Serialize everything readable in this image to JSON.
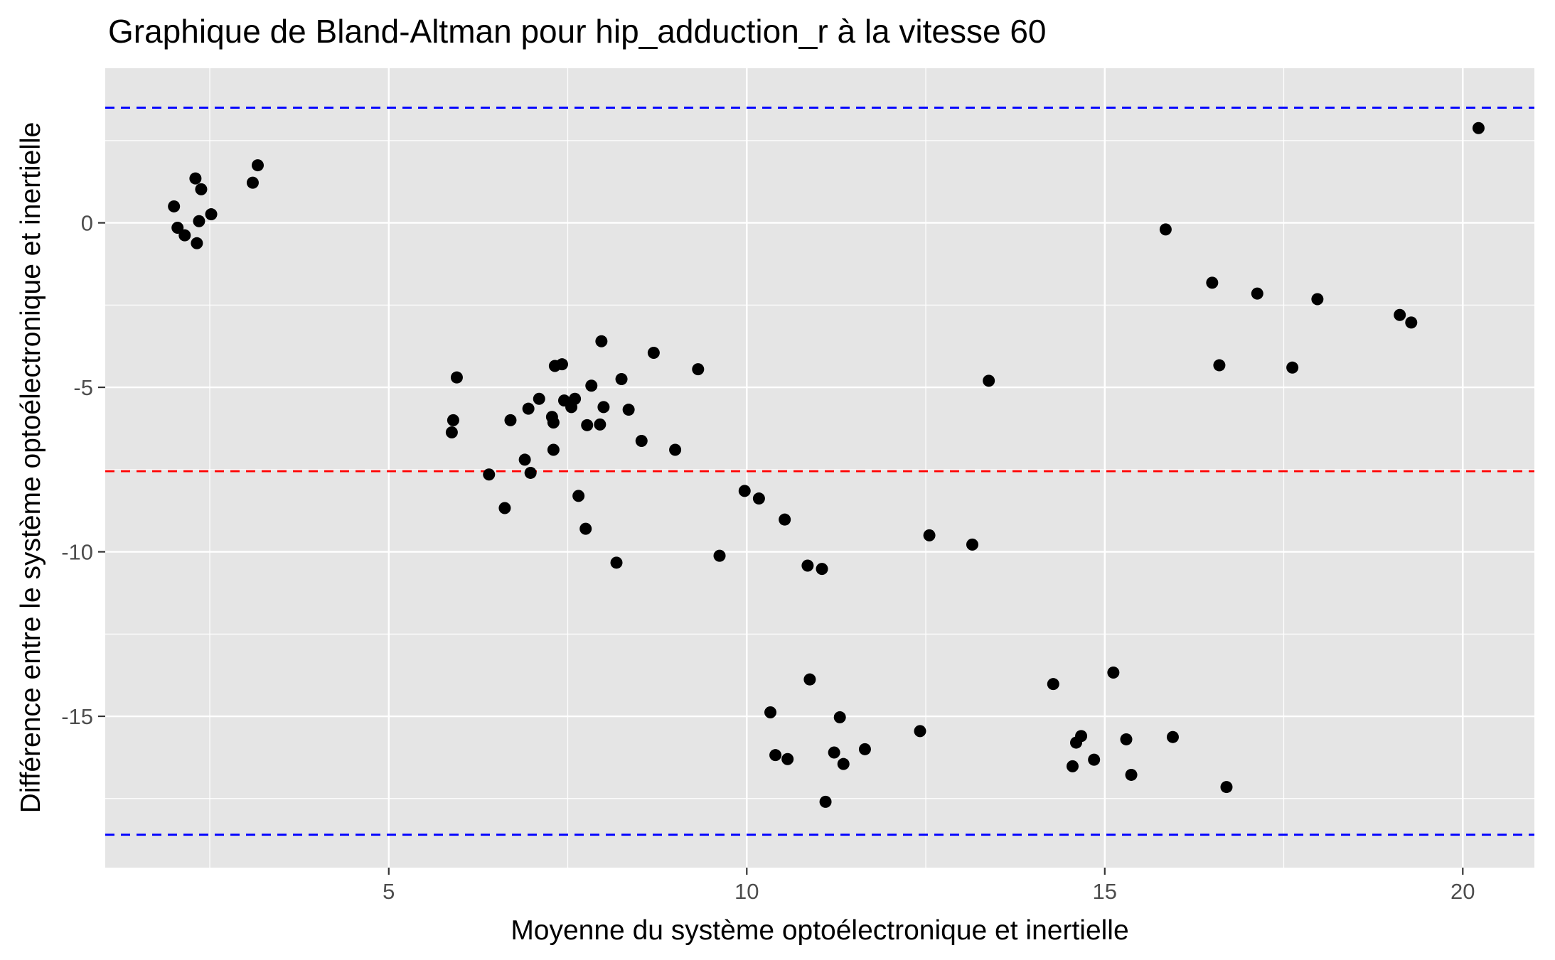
{
  "chart_data": {
    "type": "scatter",
    "title": "Graphique de Bland-Altman pour hip_adduction_r à la vitesse 60",
    "xlabel": "Moyenne du système optoélectronique et inertielle",
    "ylabel": "Différence entre le système optoélectronique et inertielle",
    "xlim": [
      1.04,
      21.0
    ],
    "ylim": [
      -19.6,
      4.7
    ],
    "x_ticks": [
      5,
      10,
      15,
      20
    ],
    "x_tick_labels": [
      "5",
      "10",
      "15",
      "20"
    ],
    "y_ticks": [
      0,
      -5,
      -10,
      -15
    ],
    "y_tick_labels": [
      "0",
      "-5",
      "-10",
      "-15"
    ],
    "grid": true,
    "legend": "none",
    "colors": {
      "panel": "#E5E5E5",
      "grid": "#FFFFFF",
      "points": "#000000",
      "mean_line": "#FF0000",
      "limit_lines": "#0000FF"
    },
    "reference_lines": [
      {
        "type": "mean_difference",
        "y": -7.55,
        "color": "#FF0000",
        "style": "dashed"
      },
      {
        "type": "upper_limit",
        "y": 3.5,
        "color": "#0000FF",
        "style": "dashed"
      },
      {
        "type": "lower_limit",
        "y": -18.6,
        "color": "#0000FF",
        "style": "dashed"
      }
    ],
    "points": [
      {
        "x": 2.0,
        "y": 0.5
      },
      {
        "x": 2.05,
        "y": -0.15
      },
      {
        "x": 2.15,
        "y": -0.38
      },
      {
        "x": 2.3,
        "y": 1.35
      },
      {
        "x": 2.32,
        "y": -0.62
      },
      {
        "x": 2.35,
        "y": 0.05
      },
      {
        "x": 2.38,
        "y": 1.02
      },
      {
        "x": 2.52,
        "y": 0.26
      },
      {
        "x": 3.1,
        "y": 1.22
      },
      {
        "x": 3.17,
        "y": 1.75
      },
      {
        "x": 5.88,
        "y": -6.37
      },
      {
        "x": 5.9,
        "y": -6.0
      },
      {
        "x": 5.95,
        "y": -4.7
      },
      {
        "x": 6.4,
        "y": -7.65
      },
      {
        "x": 6.62,
        "y": -8.67
      },
      {
        "x": 6.7,
        "y": -6.0
      },
      {
        "x": 6.9,
        "y": -7.2
      },
      {
        "x": 6.95,
        "y": -5.65
      },
      {
        "x": 6.98,
        "y": -7.6
      },
      {
        "x": 7.1,
        "y": -5.35
      },
      {
        "x": 7.28,
        "y": -5.9
      },
      {
        "x": 7.3,
        "y": -6.07
      },
      {
        "x": 7.3,
        "y": -6.9
      },
      {
        "x": 7.32,
        "y": -4.35
      },
      {
        "x": 7.42,
        "y": -4.3
      },
      {
        "x": 7.45,
        "y": -5.4
      },
      {
        "x": 7.55,
        "y": -5.6
      },
      {
        "x": 7.6,
        "y": -5.35
      },
      {
        "x": 7.65,
        "y": -8.3
      },
      {
        "x": 7.75,
        "y": -9.3
      },
      {
        "x": 7.77,
        "y": -6.15
      },
      {
        "x": 7.83,
        "y": -4.95
      },
      {
        "x": 7.95,
        "y": -6.13
      },
      {
        "x": 7.97,
        "y": -3.6
      },
      {
        "x": 8.0,
        "y": -5.6
      },
      {
        "x": 8.18,
        "y": -10.33
      },
      {
        "x": 8.25,
        "y": -4.75
      },
      {
        "x": 8.35,
        "y": -5.68
      },
      {
        "x": 8.53,
        "y": -6.63
      },
      {
        "x": 8.7,
        "y": -3.95
      },
      {
        "x": 9.0,
        "y": -6.9
      },
      {
        "x": 9.32,
        "y": -4.45
      },
      {
        "x": 9.62,
        "y": -10.12
      },
      {
        "x": 9.97,
        "y": -8.15
      },
      {
        "x": 10.17,
        "y": -8.38
      },
      {
        "x": 10.53,
        "y": -9.02
      },
      {
        "x": 10.85,
        "y": -10.42
      },
      {
        "x": 11.05,
        "y": -10.52
      },
      {
        "x": 12.55,
        "y": -9.5
      },
      {
        "x": 13.15,
        "y": -9.78
      },
      {
        "x": 13.38,
        "y": -4.8
      },
      {
        "x": 10.33,
        "y": -14.88
      },
      {
        "x": 10.4,
        "y": -16.18
      },
      {
        "x": 10.57,
        "y": -16.3
      },
      {
        "x": 10.88,
        "y": -13.88
      },
      {
        "x": 11.1,
        "y": -17.6
      },
      {
        "x": 11.22,
        "y": -16.1
      },
      {
        "x": 11.3,
        "y": -15.03
      },
      {
        "x": 11.35,
        "y": -16.45
      },
      {
        "x": 11.65,
        "y": -16.0
      },
      {
        "x": 12.42,
        "y": -15.45
      },
      {
        "x": 14.28,
        "y": -14.02
      },
      {
        "x": 14.55,
        "y": -16.52
      },
      {
        "x": 14.6,
        "y": -15.8
      },
      {
        "x": 14.67,
        "y": -15.6
      },
      {
        "x": 14.85,
        "y": -16.32
      },
      {
        "x": 15.12,
        "y": -13.67
      },
      {
        "x": 15.3,
        "y": -15.7
      },
      {
        "x": 15.37,
        "y": -16.78
      },
      {
        "x": 15.95,
        "y": -15.63
      },
      {
        "x": 16.7,
        "y": -17.15
      },
      {
        "x": 15.85,
        "y": -0.2
      },
      {
        "x": 16.5,
        "y": -1.82
      },
      {
        "x": 16.6,
        "y": -4.33
      },
      {
        "x": 17.13,
        "y": -2.15
      },
      {
        "x": 17.62,
        "y": -4.4
      },
      {
        "x": 17.97,
        "y": -2.32
      },
      {
        "x": 19.12,
        "y": -2.8
      },
      {
        "x": 19.28,
        "y": -3.03
      },
      {
        "x": 20.22,
        "y": 2.88
      }
    ]
  }
}
